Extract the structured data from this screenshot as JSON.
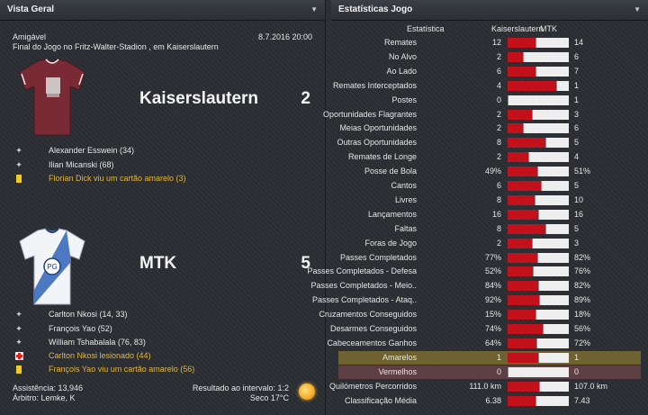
{
  "left_panel": {
    "title": "Vista Geral",
    "match_type": "Amigável",
    "date": "8.7.2016 20:00",
    "description": "Final do Jogo no Fritz-Walter-Stadion , em Kaiserslautern",
    "home": {
      "name": "Kaiserslautern",
      "score": "2",
      "shirt_color": "#7a2a35",
      "events": [
        {
          "type": "goal",
          "icon": "ball-icon",
          "text": "Alexander Esswein (34)"
        },
        {
          "type": "goal",
          "icon": "ball-icon",
          "text": "Ilian Micanski (68)"
        },
        {
          "type": "yellow",
          "icon": "yellow-card-icon",
          "text": "Florian Dick viu um cartão amarelo (3)"
        }
      ]
    },
    "away": {
      "name": "MTK",
      "score": "5",
      "shirt_color": "#f2f4f7",
      "events": [
        {
          "type": "goal",
          "icon": "ball-icon",
          "text": "Carlton Nkosi (14, 33)"
        },
        {
          "type": "goal",
          "icon": "ball-icon",
          "text": "François Yao (52)"
        },
        {
          "type": "goal",
          "icon": "ball-icon",
          "text": "William Tshabalala (76, 83)"
        },
        {
          "type": "injury",
          "icon": "injury-icon",
          "text": "Carlton Nkosi lesionado (44)"
        },
        {
          "type": "yellow",
          "icon": "yellow-card-icon",
          "text": "François Yao viu um cartão amarelo (56)"
        }
      ]
    },
    "attendance": "Assistência: 13,946",
    "referee": "Árbitro: Lemke, K",
    "halftime": "Resultado ao intervalo: 1:2",
    "weather": "Seco 17°C"
  },
  "right_panel": {
    "title": "Estatísticas Jogo",
    "header_stat": "Estatística",
    "header_home": "Kaiserslautern",
    "header_away": "MTK",
    "home_color": "#c2111a",
    "stats": [
      {
        "label": "Remates",
        "home": "12",
        "away": "14",
        "hv": 12,
        "av": 14
      },
      {
        "label": "No Alvo",
        "home": "2",
        "away": "6",
        "hv": 2,
        "av": 6
      },
      {
        "label": "Ao Lado",
        "home": "6",
        "away": "7",
        "hv": 6,
        "av": 7
      },
      {
        "label": "Remates Interceptados",
        "home": "4",
        "away": "1",
        "hv": 4,
        "av": 1
      },
      {
        "label": "Postes",
        "home": "0",
        "away": "1",
        "hv": 0,
        "av": 1
      },
      {
        "label": "Oportunidades Flagrantes",
        "home": "2",
        "away": "3",
        "hv": 2,
        "av": 3
      },
      {
        "label": "Meias Oportunidades",
        "home": "2",
        "away": "6",
        "hv": 2,
        "av": 6
      },
      {
        "label": "Outras Oportunidades",
        "home": "8",
        "away": "5",
        "hv": 8,
        "av": 5
      },
      {
        "label": "Remates de Longe",
        "home": "2",
        "away": "4",
        "hv": 2,
        "av": 4
      },
      {
        "label": "Posse de Bola",
        "home": "49%",
        "away": "51%",
        "hv": 49,
        "av": 51
      },
      {
        "label": "Cantos",
        "home": "6",
        "away": "5",
        "hv": 6,
        "av": 5
      },
      {
        "label": "Livres",
        "home": "8",
        "away": "10",
        "hv": 8,
        "av": 10
      },
      {
        "label": "Lançamentos",
        "home": "16",
        "away": "16",
        "hv": 16,
        "av": 16
      },
      {
        "label": "Faltas",
        "home": "8",
        "away": "5",
        "hv": 8,
        "av": 5
      },
      {
        "label": "Foras de Jogo",
        "home": "2",
        "away": "3",
        "hv": 2,
        "av": 3
      },
      {
        "label": "Passes Completados",
        "home": "77%",
        "away": "82%",
        "hv": 77,
        "av": 82
      },
      {
        "label": "Passes Completados - Defesa",
        "home": "52%",
        "away": "76%",
        "hv": 52,
        "av": 76
      },
      {
        "label": "Passes Completados - Meio..",
        "home": "84%",
        "away": "82%",
        "hv": 84,
        "av": 82
      },
      {
        "label": "Passes Completados - Ataq..",
        "home": "92%",
        "away": "89%",
        "hv": 92,
        "av": 89
      },
      {
        "label": "Cruzamentos Conseguidos",
        "home": "15%",
        "away": "18%",
        "hv": 15,
        "av": 18
      },
      {
        "label": "Desarmes Conseguidos",
        "home": "74%",
        "away": "56%",
        "hv": 74,
        "av": 56
      },
      {
        "label": "Cabeceamentos Ganhos",
        "home": "64%",
        "away": "72%",
        "hv": 64,
        "av": 72
      },
      {
        "label": "Amarelos",
        "home": "1",
        "away": "1",
        "hv": 1,
        "av": 1,
        "highlight": "yellow"
      },
      {
        "label": "Vermelhos",
        "home": "0",
        "away": "0",
        "hv": 0,
        "av": 0,
        "highlight": "red"
      },
      {
        "label": "Quilómetros Percorridos",
        "home": "111.0 km",
        "away": "107.0 km",
        "hv": 111,
        "av": 107
      },
      {
        "label": "Classificação Média",
        "home": "6.38",
        "away": "7.43",
        "hv": 6.38,
        "av": 7.43
      }
    ]
  }
}
